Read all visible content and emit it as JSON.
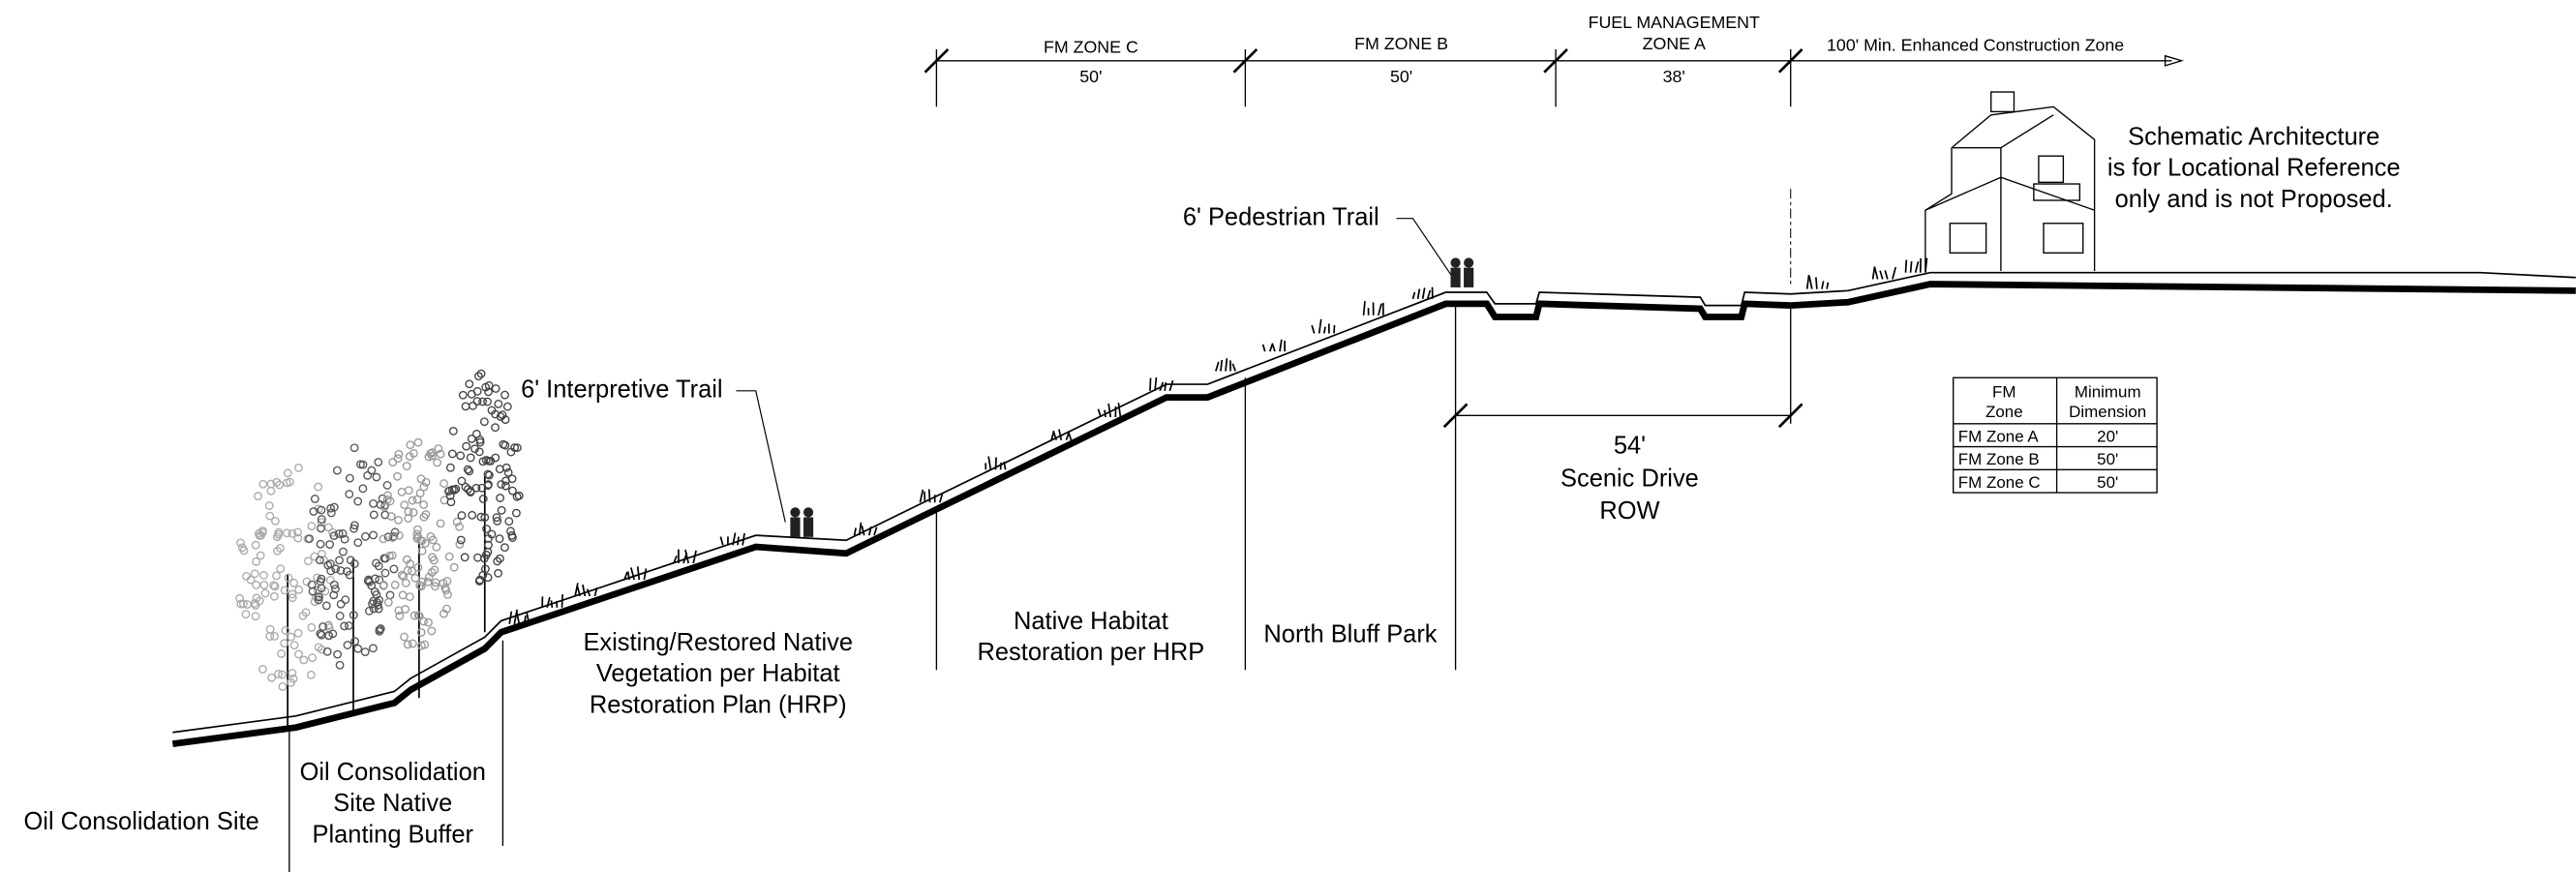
{
  "zones": [
    {
      "label": [
        "FM ZONE C"
      ],
      "dimension": "50'"
    },
    {
      "label": [
        "FM ZONE B"
      ],
      "dimension": "50'"
    },
    {
      "label": [
        "FUEL MANAGEMENT",
        "ZONE A"
      ],
      "dimension": "38'"
    }
  ],
  "construction_zone": "100' Min. Enhanced Construction Zone",
  "architecture_note": [
    "Schematic Architecture",
    "is for Locational Reference",
    "only and is not Proposed."
  ],
  "pedestrian_trail": "6' Pedestrian Trail",
  "interpretive_trail": "6' Interpretive Trail",
  "scenic_drive": [
    "54'",
    "Scenic Drive",
    "ROW"
  ],
  "table": {
    "header": [
      [
        "FM",
        "Zone"
      ],
      [
        "Minimum",
        "Dimension"
      ]
    ],
    "rows": [
      [
        "FM Zone A",
        "20'"
      ],
      [
        "FM Zone B",
        "50'"
      ],
      [
        "FM Zone C",
        "50'"
      ]
    ]
  },
  "areas": [
    [
      "Oil Consolidation Site"
    ],
    [
      "Oil Consolidation",
      "Site Native",
      "Planting Buffer"
    ],
    [
      "Existing/Restored Native",
      "Vegetation per Habitat",
      "Restoration Plan (HRP)"
    ],
    [
      "Native Habitat",
      "Restoration per HRP"
    ],
    [
      "North Bluff Park"
    ]
  ]
}
